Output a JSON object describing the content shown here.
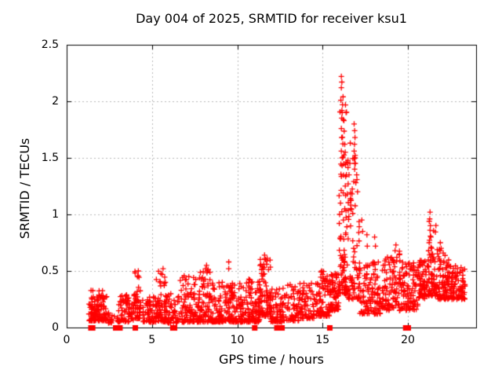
{
  "chart_data": {
    "type": "scatter",
    "title": "Day 004 of 2025, SRMTID for receiver ksu1",
    "xlabel": "GPS time / hours",
    "ylabel": "SRMTID / TECUs",
    "xlim": [
      0,
      24
    ],
    "ylim": [
      0,
      2.5
    ],
    "xticks": [
      0,
      5,
      10,
      15,
      20
    ],
    "yticks": [
      0,
      0.5,
      1,
      1.5,
      2,
      2.5
    ],
    "xtick_labels": [
      "0",
      "5",
      "10",
      "15",
      "20"
    ],
    "ytick_labels": [
      "0",
      "0.5",
      "1",
      "1.5",
      "2",
      "2.5"
    ],
    "grid": true,
    "legend": false,
    "marker": "plus",
    "marker_color": "#ff0000",
    "grid_color": "#b8b8b8",
    "axis_color": "#000000",
    "background": "#ffffff",
    "seed": 42,
    "zero_flag_hours": [
      1.4,
      1.5,
      2.85,
      3.1,
      4.0,
      6.2,
      6.3,
      11.0,
      12.3,
      12.45,
      12.6,
      15.4,
      19.85,
      20.0
    ],
    "peak_points": [
      [
        16.1,
        2.22
      ],
      [
        16.13,
        2.17
      ],
      [
        16.1,
        2.12
      ],
      [
        16.2,
        2.04
      ],
      [
        16.17,
        1.97
      ],
      [
        16.15,
        1.9
      ],
      [
        16.25,
        1.83
      ],
      [
        16.1,
        1.76
      ],
      [
        16.12,
        1.68
      ],
      [
        16.3,
        1.62
      ],
      [
        16.1,
        1.56
      ],
      [
        16.15,
        1.5
      ],
      [
        16.35,
        1.44
      ],
      [
        16.85,
        1.8
      ],
      [
        16.88,
        1.74
      ],
      [
        16.9,
        1.68
      ],
      [
        16.87,
        1.62
      ],
      [
        16.85,
        1.56
      ],
      [
        16.9,
        1.5
      ],
      [
        16.92,
        1.45
      ],
      [
        16.88,
        1.4
      ],
      [
        17.0,
        1.35
      ],
      [
        16.95,
        1.28
      ],
      [
        17.05,
        1.2
      ],
      [
        16.6,
        1.45
      ],
      [
        16.55,
        1.35
      ],
      [
        16.5,
        1.27
      ],
      [
        16.45,
        1.18
      ],
      [
        16.4,
        1.35
      ],
      [
        16.05,
        1.1
      ],
      [
        16.0,
        1.0
      ],
      [
        15.98,
        0.92
      ],
      [
        16.3,
        1.05
      ],
      [
        16.22,
        0.95
      ],
      [
        17.3,
        0.95
      ],
      [
        17.35,
        0.85
      ],
      [
        17.6,
        0.82
      ],
      [
        17.62,
        0.72
      ],
      [
        17.65,
        0.55
      ],
      [
        18.05,
        0.8
      ],
      [
        18.1,
        0.72
      ],
      [
        19.3,
        0.73
      ],
      [
        19.25,
        0.68
      ],
      [
        19.35,
        0.62
      ],
      [
        21.3,
        1.02
      ],
      [
        21.28,
        0.96
      ],
      [
        21.32,
        0.9
      ],
      [
        21.3,
        0.86
      ],
      [
        21.35,
        0.8
      ],
      [
        21.25,
        0.75
      ],
      [
        21.4,
        0.7
      ],
      [
        21.45,
        0.65
      ],
      [
        11.6,
        0.64
      ],
      [
        11.65,
        0.6
      ],
      [
        11.55,
        0.56
      ],
      [
        9.5,
        0.58
      ],
      [
        9.5,
        0.52
      ],
      [
        8.2,
        0.55
      ],
      [
        8.25,
        0.5
      ],
      [
        5.65,
        0.52
      ],
      [
        5.6,
        0.47
      ],
      [
        4.2,
        0.5
      ],
      [
        4.15,
        0.45
      ],
      [
        22.9,
        0.52
      ],
      [
        14.95,
        0.5
      ],
      [
        15.0,
        0.47
      ],
      [
        13.1,
        0.38
      ],
      [
        21.9,
        0.75
      ],
      [
        21.95,
        0.7
      ]
    ],
    "clusters": [
      [
        1.3,
        2.35,
        0.06,
        0.33,
        120,
        2.0
      ],
      [
        2.4,
        2.8,
        0.04,
        0.14,
        15,
        1.8
      ],
      [
        2.95,
        3.95,
        0.05,
        0.3,
        70,
        2.0
      ],
      [
        3.95,
        4.35,
        0.08,
        0.5,
        45,
        2.0
      ],
      [
        4.45,
        5.1,
        0.05,
        0.28,
        50,
        2.0
      ],
      [
        5.1,
        5.8,
        0.05,
        0.5,
        70,
        2.2
      ],
      [
        5.8,
        6.6,
        0.04,
        0.3,
        60,
        2.0
      ],
      [
        6.6,
        7.6,
        0.05,
        0.46,
        90,
        2.2
      ],
      [
        7.6,
        8.45,
        0.05,
        0.52,
        90,
        2.2
      ],
      [
        8.45,
        9.6,
        0.05,
        0.4,
        110,
        2.2
      ],
      [
        9.6,
        10.6,
        0.05,
        0.4,
        100,
        2.2
      ],
      [
        10.6,
        11.3,
        0.05,
        0.45,
        80,
        2.2
      ],
      [
        11.3,
        11.95,
        0.1,
        0.62,
        80,
        1.8
      ],
      [
        11.95,
        12.6,
        0.05,
        0.35,
        60,
        2.0
      ],
      [
        12.6,
        13.6,
        0.06,
        0.38,
        70,
        2.0
      ],
      [
        13.6,
        14.6,
        0.08,
        0.4,
        70,
        1.8
      ],
      [
        14.6,
        15.4,
        0.1,
        0.5,
        80,
        1.8
      ],
      [
        15.4,
        15.95,
        0.15,
        0.48,
        70,
        1.6
      ],
      [
        15.95,
        16.45,
        0.3,
        2.1,
        90,
        2.4
      ],
      [
        16.45,
        17.15,
        0.25,
        1.75,
        80,
        2.4
      ],
      [
        17.15,
        17.8,
        0.12,
        0.6,
        55,
        1.8
      ],
      [
        17.8,
        18.6,
        0.12,
        0.6,
        70,
        1.8
      ],
      [
        18.6,
        19.6,
        0.15,
        0.68,
        90,
        1.6
      ],
      [
        19.6,
        20.6,
        0.15,
        0.58,
        90,
        1.6
      ],
      [
        20.6,
        21.2,
        0.25,
        0.6,
        70,
        1.5
      ],
      [
        21.2,
        21.7,
        0.28,
        0.95,
        60,
        1.8
      ],
      [
        21.7,
        22.4,
        0.25,
        0.7,
        80,
        1.8
      ],
      [
        22.4,
        23.35,
        0.25,
        0.55,
        90,
        1.5
      ]
    ]
  }
}
